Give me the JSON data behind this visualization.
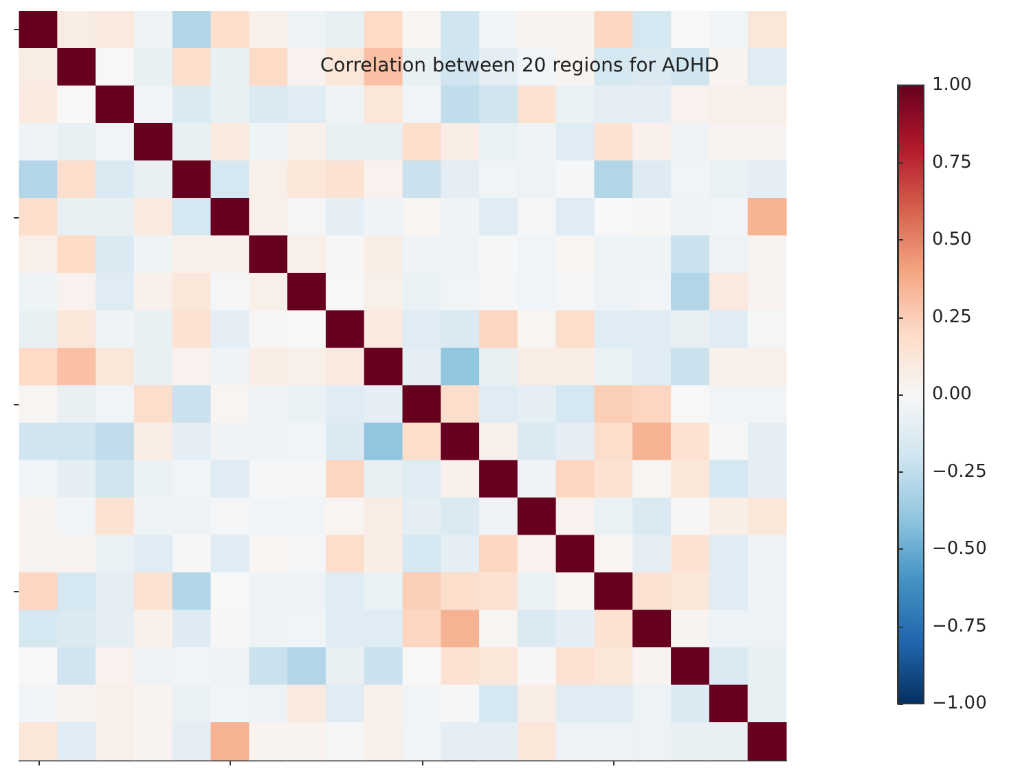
{
  "chart_data": {
    "type": "heatmap",
    "title": "Correlation between 20 regions for ADHD",
    "categories": [
      null,
      null,
      null,
      null,
      null,
      null,
      null,
      null,
      null,
      null,
      null,
      null,
      null,
      null,
      null,
      null,
      null,
      null,
      null,
      null
    ],
    "y_categories": [
      null,
      null,
      null,
      null,
      null,
      null,
      null,
      null,
      null,
      null,
      null,
      null,
      null,
      null,
      null,
      null,
      null,
      null,
      null,
      null
    ],
    "cells": [
      [
        1,
        0.08,
        0.1,
        -0.04,
        -0.3,
        0.18,
        0.06,
        -0.05,
        -0.08,
        0.2,
        0.02,
        -0.2,
        -0.03,
        0.03,
        0.03,
        0.22,
        -0.18,
        0.0,
        -0.03,
        0.12
      ],
      [
        0.08,
        1,
        0.0,
        -0.08,
        0.18,
        -0.08,
        0.2,
        0.04,
        0.12,
        0.3,
        -0.08,
        -0.2,
        -0.1,
        -0.03,
        0.03,
        -0.18,
        -0.15,
        -0.2,
        0.03,
        -0.12
      ],
      [
        0.1,
        0.0,
        1,
        -0.03,
        -0.15,
        -0.08,
        -0.15,
        -0.12,
        -0.04,
        0.12,
        -0.03,
        -0.25,
        -0.2,
        0.15,
        -0.07,
        -0.1,
        -0.1,
        0.04,
        0.06,
        0.06
      ],
      [
        -0.04,
        -0.08,
        -0.03,
        1,
        -0.08,
        0.1,
        -0.05,
        0.05,
        -0.08,
        -0.08,
        0.18,
        0.07,
        -0.07,
        -0.05,
        -0.12,
        0.15,
        0.05,
        -0.04,
        0.03,
        0.03
      ],
      [
        -0.3,
        0.18,
        -0.15,
        -0.08,
        1,
        -0.18,
        0.06,
        0.12,
        0.15,
        0.04,
        -0.22,
        -0.1,
        -0.03,
        -0.06,
        -0.01,
        -0.3,
        -0.13,
        -0.03,
        -0.07,
        -0.1
      ],
      [
        0.18,
        -0.08,
        -0.08,
        0.1,
        -0.18,
        1,
        0.05,
        -0.02,
        -0.1,
        -0.04,
        0.02,
        -0.04,
        -0.12,
        -0.02,
        -0.12,
        0.0,
        0.01,
        -0.04,
        -0.03,
        0.35
      ],
      [
        0.06,
        0.2,
        -0.15,
        -0.05,
        0.06,
        0.05,
        1,
        0.06,
        0.01,
        0.07,
        -0.04,
        -0.06,
        -0.01,
        -0.03,
        0.02,
        -0.05,
        -0.05,
        -0.22,
        -0.06,
        0.03
      ],
      [
        -0.05,
        0.04,
        -0.12,
        0.05,
        0.12,
        -0.02,
        0.06,
        1,
        0.0,
        0.06,
        -0.07,
        -0.03,
        -0.02,
        -0.03,
        -0.02,
        -0.06,
        -0.03,
        -0.3,
        0.1,
        0.03
      ],
      [
        -0.08,
        0.12,
        -0.04,
        -0.08,
        0.15,
        -0.1,
        0.01,
        0.0,
        1,
        0.1,
        -0.12,
        -0.15,
        0.22,
        0.02,
        0.18,
        -0.12,
        -0.12,
        -0.08,
        -0.12,
        -0.02
      ],
      [
        0.2,
        0.3,
        0.12,
        -0.08,
        0.04,
        -0.04,
        0.07,
        0.06,
        0.1,
        1,
        -0.1,
        -0.4,
        -0.08,
        0.08,
        0.07,
        -0.07,
        -0.12,
        -0.22,
        0.05,
        0.06
      ],
      [
        0.02,
        -0.08,
        -0.03,
        0.18,
        -0.22,
        0.02,
        -0.04,
        -0.07,
        -0.12,
        -0.1,
        1,
        0.18,
        -0.12,
        -0.1,
        -0.18,
        0.25,
        0.22,
        0.0,
        -0.03,
        -0.03
      ],
      [
        -0.2,
        -0.2,
        -0.25,
        0.07,
        -0.1,
        -0.04,
        -0.06,
        -0.03,
        -0.15,
        -0.4,
        0.18,
        1,
        0.05,
        -0.15,
        -0.1,
        0.18,
        0.35,
        0.15,
        -0.01,
        -0.1
      ],
      [
        -0.03,
        -0.1,
        -0.2,
        -0.07,
        -0.03,
        -0.12,
        -0.01,
        -0.02,
        0.22,
        -0.08,
        -0.12,
        0.05,
        1,
        -0.04,
        0.22,
        0.15,
        0.02,
        0.12,
        -0.18,
        -0.1
      ],
      [
        0.03,
        -0.03,
        0.15,
        -0.05,
        -0.06,
        -0.02,
        -0.03,
        -0.03,
        0.02,
        0.08,
        -0.1,
        -0.15,
        -0.04,
        1,
        0.04,
        -0.07,
        -0.15,
        0.01,
        0.07,
        0.12
      ],
      [
        0.03,
        0.03,
        -0.07,
        -0.12,
        -0.01,
        -0.12,
        0.02,
        -0.02,
        0.18,
        0.07,
        -0.18,
        -0.1,
        0.22,
        0.04,
        1,
        0.02,
        -0.1,
        0.15,
        -0.12,
        -0.06
      ],
      [
        0.22,
        -0.18,
        -0.1,
        0.15,
        -0.3,
        0.0,
        -0.05,
        -0.06,
        -0.12,
        -0.07,
        0.25,
        0.18,
        0.15,
        -0.07,
        0.02,
        1,
        0.15,
        0.12,
        -0.12,
        -0.06
      ],
      [
        -0.18,
        -0.15,
        -0.1,
        0.05,
        -0.13,
        0.01,
        -0.05,
        -0.03,
        -0.12,
        -0.12,
        0.22,
        0.35,
        0.02,
        -0.15,
        -0.1,
        0.15,
        1,
        0.03,
        -0.06,
        -0.06
      ],
      [
        0.0,
        -0.2,
        0.04,
        -0.04,
        -0.03,
        -0.04,
        -0.22,
        -0.3,
        -0.08,
        -0.22,
        0.0,
        0.15,
        0.12,
        0.01,
        0.15,
        0.12,
        0.03,
        1,
        -0.15,
        -0.08
      ],
      [
        -0.03,
        0.03,
        0.06,
        0.03,
        -0.07,
        -0.03,
        -0.06,
        0.1,
        -0.12,
        0.05,
        -0.03,
        -0.01,
        -0.18,
        0.07,
        -0.12,
        -0.12,
        -0.06,
        -0.15,
        1,
        -0.08
      ],
      [
        0.12,
        -0.12,
        0.06,
        0.03,
        -0.1,
        0.35,
        0.03,
        0.03,
        -0.02,
        0.06,
        -0.03,
        -0.1,
        -0.1,
        0.12,
        -0.06,
        -0.06,
        -0.06,
        -0.08,
        -0.08,
        1
      ]
    ],
    "clim": [
      -1,
      1
    ],
    "cticks": [
      {
        "value": -1,
        "label": "−1.00"
      },
      {
        "value": -0.75,
        "label": "−0.75"
      },
      {
        "value": -0.5,
        "label": "−0.50"
      },
      {
        "value": -0.25,
        "label": "−0.25"
      },
      {
        "value": 0,
        "label": "0.00"
      },
      {
        "value": 0.25,
        "label": "0.25"
      },
      {
        "value": 0.5,
        "label": "0.50"
      },
      {
        "value": 0.75,
        "label": "0.75"
      },
      {
        "value": 1,
        "label": "1.00"
      }
    ],
    "tick_labels": false
  }
}
